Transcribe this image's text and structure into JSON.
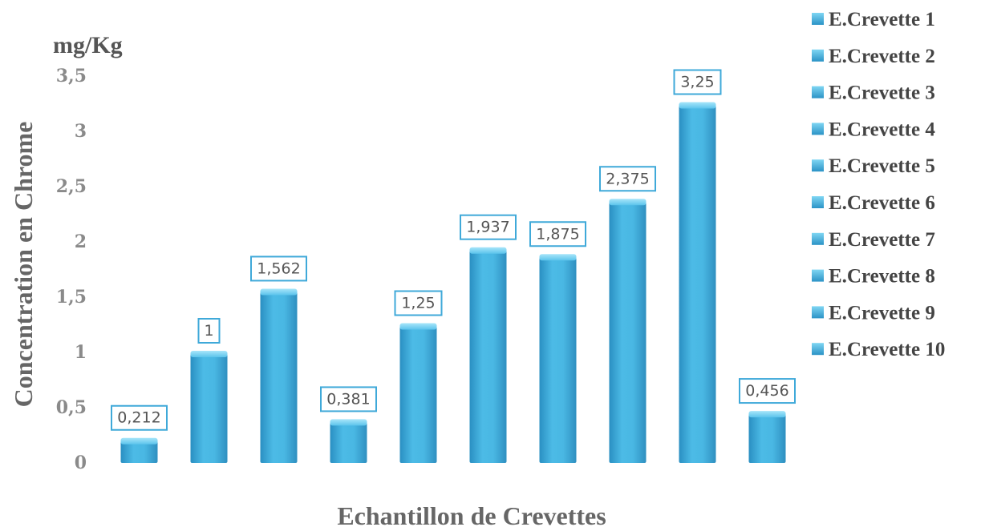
{
  "chart_data": {
    "type": "bar",
    "unit_label": "mg/Kg",
    "ylabel": "Concentration en Chrome",
    "xlabel": "Echantillon de Crevettes",
    "ylim": [
      0,
      3.5
    ],
    "yticks": [
      "0",
      "0,5",
      "1",
      "1,5",
      "2",
      "2,5",
      "3",
      "3,5"
    ],
    "grid": false,
    "legend_position": "right",
    "categories": [
      "E.Crevette 1",
      "E.Crevette 2",
      "E.Crevette 3",
      "E.Crevette 4",
      "E.Crevette 5",
      "E.Crevette 6",
      "E.Crevette 7",
      "E.Crevette 8",
      "E.Crevette 9",
      "E.Crevette 10"
    ],
    "values": [
      0.212,
      1,
      1.562,
      0.381,
      1.25,
      1.937,
      1.875,
      2.375,
      3.25,
      0.456
    ],
    "data_labels": [
      "0,212",
      "1",
      "1,562",
      "0,381",
      "1,25",
      "1,937",
      "1,875",
      "2,375",
      "3,25",
      "0,456"
    ],
    "colors": {
      "bar_top": "#6fd0f0",
      "bar_mid": "#3fb0de",
      "bar_bottom": "#2a8fc2",
      "label_border": "#3fa9d9"
    }
  }
}
